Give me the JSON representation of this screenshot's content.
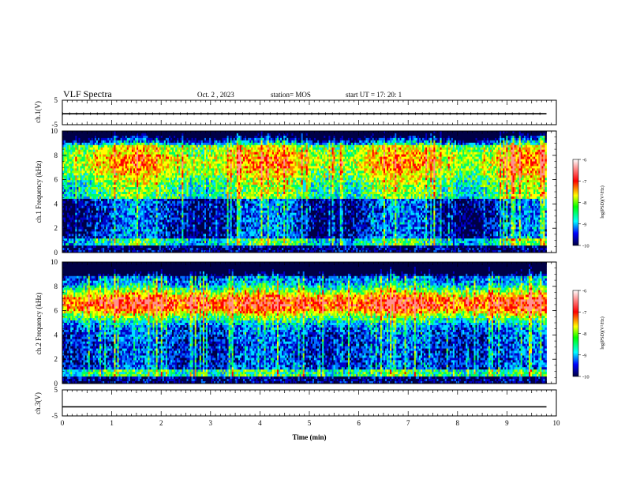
{
  "header": {
    "title": "VLF Spectra",
    "date": "Oct. 2 , 2023",
    "station": "station= MOS",
    "start": "start UT = 17: 20: 1"
  },
  "colorbar_ticks": [
    "-6",
    "-7",
    "-8",
    "-9",
    "-10"
  ],
  "chart_data": [
    {
      "type": "line",
      "panel": "ch1-voltage",
      "ylabel": "ch.1(V)",
      "ylim": [
        -5,
        5
      ],
      "yticks": [
        "5",
        "-5"
      ],
      "x": [
        0,
        1,
        2,
        3,
        4,
        5,
        6,
        7,
        8,
        9,
        9.8
      ],
      "series": [
        {
          "values": [
            -0.5,
            -0.5,
            -0.5,
            -0.5,
            -0.5,
            -0.5,
            -0.5,
            -0.5,
            -0.5,
            -0.5,
            -0.5
          ]
        }
      ]
    },
    {
      "type": "heatmap",
      "panel": "ch1-spectrogram",
      "ylabel": "ch.1 Frequency (kHz)",
      "ylim": [
        0,
        10
      ],
      "yticks": [
        "0",
        "2",
        "4",
        "6",
        "8",
        "10"
      ],
      "xlim": [
        0,
        10
      ],
      "data_x_end": 9.8,
      "colorbar_label": "log(PSD)(V²/Hz)",
      "colorbar_range": [
        -10,
        -6
      ]
    },
    {
      "type": "heatmap",
      "panel": "ch2-spectrogram",
      "ylabel": "ch.2 Frequency (kHz)",
      "ylim": [
        0,
        10
      ],
      "yticks": [
        "0",
        "2",
        "4",
        "6",
        "8",
        "10"
      ],
      "xlim": [
        0,
        10
      ],
      "data_x_end": 9.8,
      "colorbar_label": "log(PSD)(V²/Hz)",
      "colorbar_range": [
        -10,
        -6
      ]
    },
    {
      "type": "line",
      "panel": "ch3-voltage",
      "ylabel": "ch.3(V)",
      "ylim": [
        -5,
        5
      ],
      "yticks": [
        "5",
        "-5"
      ],
      "xlabel": "Time (min)",
      "xlim": [
        0,
        10
      ],
      "xticks": [
        "0",
        "1",
        "2",
        "3",
        "4",
        "5",
        "6",
        "7",
        "8",
        "9",
        "10"
      ],
      "x": [
        0,
        1,
        2,
        3,
        4,
        5,
        6,
        7,
        8,
        9,
        9.8
      ],
      "series": [
        {
          "values": [
            -1.5,
            -1.5,
            -1.5,
            -1.5,
            -1.5,
            -1.5,
            -1.5,
            -1.5,
            -1.5,
            -1.5,
            -1.5
          ]
        }
      ]
    }
  ]
}
